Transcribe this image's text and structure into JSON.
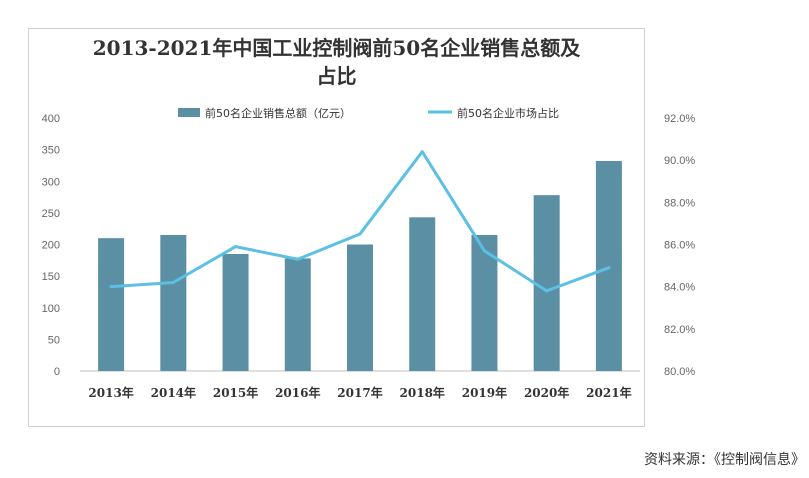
{
  "title_line1": "2013-2021年中国工业控制阀前50名企业销售总额及",
  "title_line2": "占比",
  "source": "资料来源：《控制阀信息》",
  "colors": {
    "bar": "#5b8fa4",
    "line": "#5bc0e3",
    "axis": "#bfbfbf"
  },
  "chart_data": {
    "type": "bar",
    "title": "2013-2021年中国工业控制阀前50名企业销售总额及占比",
    "categories": [
      "2013年",
      "2014年",
      "2015年",
      "2016年",
      "2017年",
      "2018年",
      "2019年",
      "2020年",
      "2021年"
    ],
    "series": [
      {
        "name": "前50名企业销售总额（亿元）",
        "type": "bar",
        "axis": "left",
        "values": [
          210,
          215,
          185,
          178,
          200,
          243,
          215,
          278,
          332
        ]
      },
      {
        "name": "前50名企业市场占比",
        "type": "line",
        "axis": "right",
        "values": [
          84.0,
          84.2,
          85.9,
          85.3,
          86.5,
          90.4,
          85.7,
          83.8,
          84.9
        ]
      }
    ],
    "y_left": {
      "ylim": [
        0,
        400
      ],
      "ticks": [
        "0",
        "50",
        "100",
        "150",
        "200",
        "250",
        "300",
        "350",
        "400"
      ]
    },
    "y_right": {
      "ylim": [
        80,
        92
      ],
      "ticks": [
        "80.0%",
        "82.0%",
        "84.0%",
        "86.0%",
        "88.0%",
        "90.0%",
        "92.0%"
      ]
    },
    "legend": "top-center",
    "grid": false
  }
}
